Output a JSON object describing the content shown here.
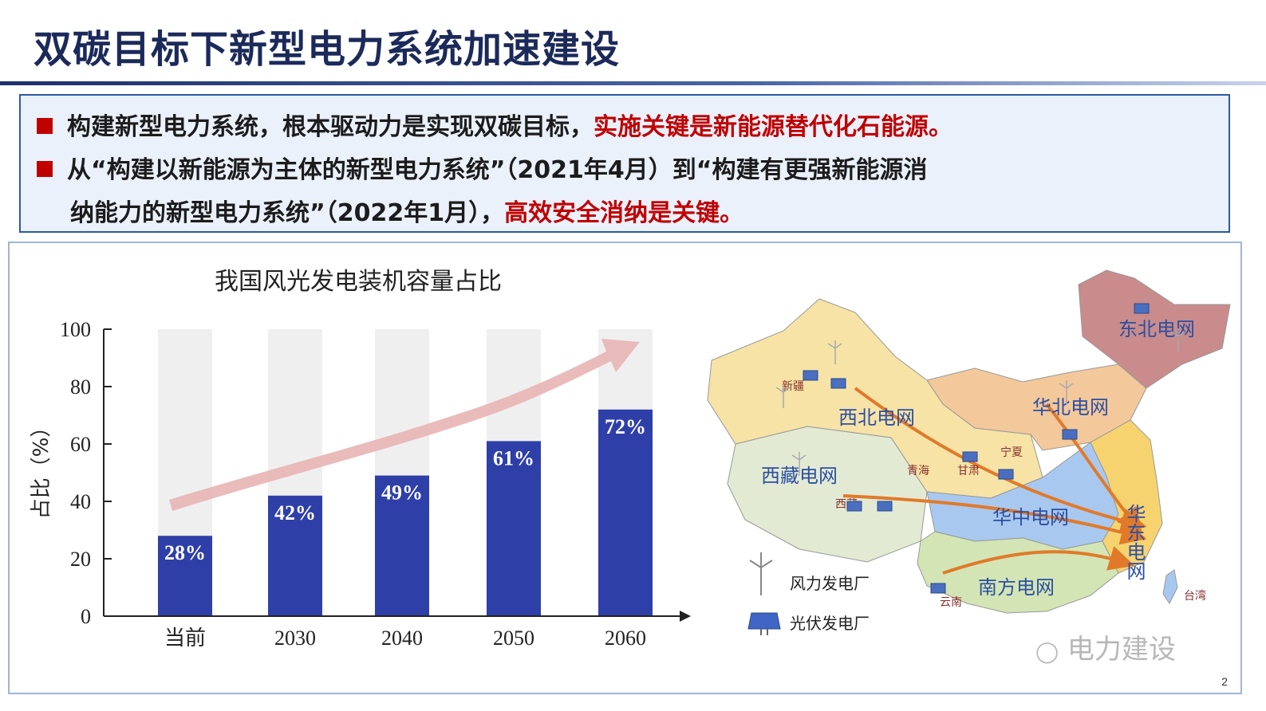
{
  "slide": {
    "title": "双碳目标下新型电力系统加速建设",
    "page_number": "2",
    "watermark": "电力建设"
  },
  "bullets": [
    {
      "text": "构建新型电力系统，根本驱动力是实现双碳目标，",
      "highlight": "实施关键是新能源替代化石能源。"
    },
    {
      "text_line1": "从“构建以新能源为主体的新型电力系统”（2021年4月）到“构建有更强新能源消",
      "text_line2": "纳能力的新型电力系统”（2022年1月），",
      "highlight": "高效安全消纳是关键。"
    }
  ],
  "chart_data": {
    "type": "bar",
    "title": "我国风光发电装机容量占比",
    "ylabel": "占比（%）",
    "xlabel": "",
    "categories": [
      "当前",
      "2030",
      "2040",
      "2050",
      "2060"
    ],
    "values": [
      28,
      42,
      49,
      61,
      72
    ],
    "value_labels": [
      "28%",
      "42%",
      "49%",
      "61%",
      "72%"
    ],
    "yticks": [
      "0",
      "20",
      "40",
      "60",
      "80",
      "100"
    ],
    "ylim": [
      0,
      100
    ],
    "bar_color": "#2e3fa8",
    "background_bar_color": "#efefef",
    "trend_arrow_color": "#e8b4b4",
    "grid": false
  },
  "map": {
    "regions": [
      {
        "label": "东北电网",
        "color": "#c98b8b"
      },
      {
        "label": "华北电网",
        "color": "#f3c89a"
      },
      {
        "label": "西北电网",
        "color": "#f6e3a5"
      },
      {
        "label": "西藏电网",
        "color": "#e3ead3"
      },
      {
        "label": "华中电网",
        "color": "#a9c8ef"
      },
      {
        "label": "华东电网",
        "color": "#f6d36f"
      },
      {
        "label": "南方电网",
        "color": "#d3e5b4"
      }
    ],
    "places": [
      "新疆",
      "青海",
      "甘肃",
      "宁夏",
      "西藏",
      "云南",
      "台湾"
    ],
    "legend": [
      {
        "label": "风力发电厂",
        "icon": "wind-turbine-icon"
      },
      {
        "label": "光伏发电厂",
        "icon": "solar-panel-icon"
      }
    ],
    "region_label_color": "#2c4fa3",
    "flow_arrow_color": "#e07a2a"
  }
}
